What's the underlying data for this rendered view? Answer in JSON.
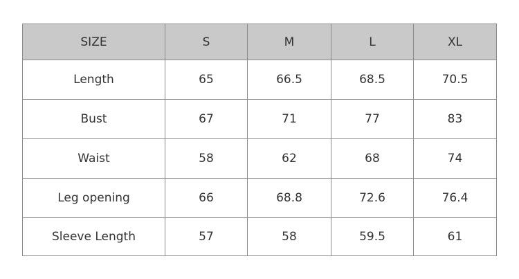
{
  "table": {
    "header": [
      "SIZE",
      "S",
      "M",
      "L",
      "XL"
    ],
    "rows": [
      [
        "Length",
        "65",
        "66.5",
        "68.5",
        "70.5"
      ],
      [
        "Bust",
        "67",
        "71",
        "77",
        "83"
      ],
      [
        "Waist",
        "58",
        "62",
        "68",
        "74"
      ],
      [
        "Leg opening",
        "66",
        "68.8",
        "72.6",
        "76.4"
      ],
      [
        "Sleeve Length",
        "57",
        "58",
        "59.5",
        "61"
      ]
    ]
  }
}
